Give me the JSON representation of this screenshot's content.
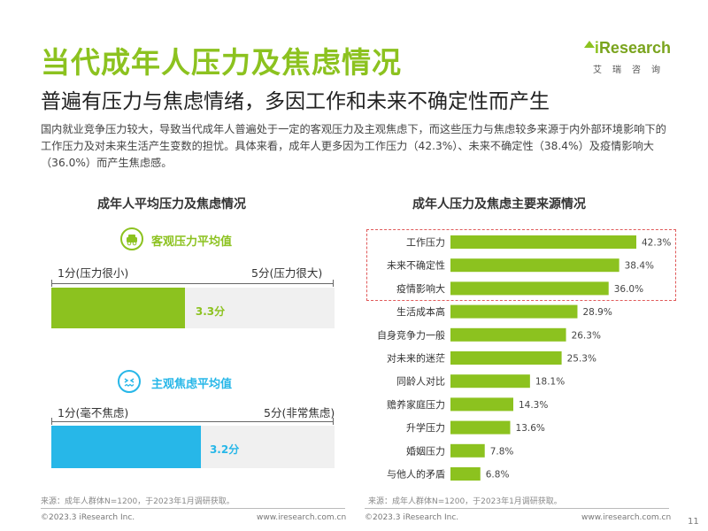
{
  "title": "当代成年人压力及焦虑情况",
  "subtitle": "普遍有压力与焦虑情绪，多因工作和未来不确定性而产生",
  "intro": "国内就业竞争压力较大，导致当代成年人普遍处于一定的客观压力及主观焦虑下，而这些压力与焦虑较多来源于内外部环境影响下的工作压力及对未来生活产生变数的担忧。具体来看，成年人更多因为工作压力（42.3%）、未来不确定性（38.4%）及疫情影响大（36.0%）而产生焦虑感。",
  "logo": {
    "main_prefix": "i",
    "main_rest": "Research",
    "sub": "艾瑞咨询"
  },
  "colors": {
    "green": "#8cc21f",
    "blue": "#27b7e8",
    "track": "#f0f0f0",
    "highlight": "#e05a5a"
  },
  "left_panel": {
    "title": "成年人平均压力及焦虑情况",
    "objective": {
      "label": "客观压力平均值",
      "icon": "car-stress-icon",
      "min_label": "1分(压力很小)",
      "max_label": "5分(压力很大)",
      "value": 3.3,
      "value_label": "3.3分",
      "scale_min": 1,
      "scale_max": 5
    },
    "subjective": {
      "label": "主观焦虑平均值",
      "icon": "anxious-face-icon",
      "min_label": "1分(毫不焦虑)",
      "max_label": "5分(非常焦虑)",
      "value": 3.2,
      "value_label": "3.2分",
      "scale_min": 1,
      "scale_max": 5
    },
    "source": "来源：成年人群体N=1200，于2023年1月调研获取。"
  },
  "chart_data": {
    "type": "bar",
    "orientation": "horizontal",
    "title": "成年人压力及焦虑主要来源情况",
    "categories": [
      "工作压力",
      "未来不确定性",
      "疫情影响大",
      "生活成本高",
      "自身竞争力一般",
      "对未来的迷茫",
      "同龄人对比",
      "赡养家庭压力",
      "升学压力",
      "婚姻压力",
      "与他人的矛盾"
    ],
    "values": [
      42.3,
      38.4,
      36.0,
      28.9,
      26.3,
      25.3,
      18.1,
      14.3,
      13.6,
      7.8,
      6.8
    ],
    "value_labels": [
      "42.3%",
      "38.4%",
      "36.0%",
      "28.9%",
      "26.3%",
      "25.3%",
      "18.1%",
      "14.3%",
      "13.6%",
      "7.8%",
      "6.8%"
    ],
    "xlim": [
      0,
      45
    ],
    "highlighted_count": 3,
    "source": "来源：成年人群体N=1200，于2023年1月调研获取。"
  },
  "footer": {
    "left_copyright": "©2023.3 iResearch Inc.",
    "left_url": "www.iresearch.com.cn",
    "right_copyright": "©2023.3 iResearch Inc.",
    "right_url": "www.iresearch.com.cn",
    "page": "11"
  }
}
